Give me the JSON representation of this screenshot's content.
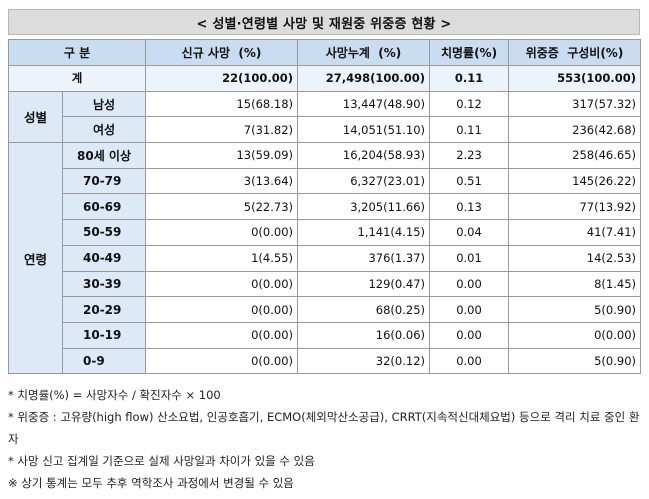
{
  "title": "< 성별·연령별 사망 및 재원중 위중증 현황 >",
  "table": {
    "headers": {
      "category": "구 분",
      "new_deaths": "신규 사망  (%)",
      "cumulative_deaths": "사망누계  (%)",
      "fatality_rate": "치명률(%)",
      "severe": "위중증  구성비(%)"
    },
    "total": {
      "label": "계",
      "new_deaths": "22(100.00)",
      "cumulative_deaths": "27,498(100.00)",
      "fatality_rate": "0.11",
      "severe": "553(100.00)"
    },
    "sex_group": "성별",
    "sex_rows": [
      {
        "label": "남성",
        "new_deaths": "15(68.18)",
        "cumulative_deaths": "13,447(48.90)",
        "fatality_rate": "0.12",
        "severe": "317(57.32)"
      },
      {
        "label": "여성",
        "new_deaths": "7(31.82)",
        "cumulative_deaths": "14,051(51.10)",
        "fatality_rate": "0.11",
        "severe": "236(42.68)"
      }
    ],
    "age_group": "연령",
    "age_rows": [
      {
        "label": "80세 이상",
        "new_deaths": "13(59.09)",
        "cumulative_deaths": "16,204(58.93)",
        "fatality_rate": "2.23",
        "severe": "258(46.65)"
      },
      {
        "label": "70-79",
        "new_deaths": "3(13.64)",
        "cumulative_deaths": "6,327(23.01)",
        "fatality_rate": "0.51",
        "severe": "145(26.22)"
      },
      {
        "label": "60-69",
        "new_deaths": "5(22.73)",
        "cumulative_deaths": "3,205(11.66)",
        "fatality_rate": "0.13",
        "severe": "77(13.92)"
      },
      {
        "label": "50-59",
        "new_deaths": "0(0.00)",
        "cumulative_deaths": "1,141(4.15)",
        "fatality_rate": "0.04",
        "severe": "41(7.41)"
      },
      {
        "label": "40-49",
        "new_deaths": "1(4.55)",
        "cumulative_deaths": "376(1.37)",
        "fatality_rate": "0.01",
        "severe": "14(2.53)"
      },
      {
        "label": "30-39",
        "new_deaths": "0(0.00)",
        "cumulative_deaths": "129(0.47)",
        "fatality_rate": "0.00",
        "severe": "8(1.45)"
      },
      {
        "label": "20-29",
        "new_deaths": "0(0.00)",
        "cumulative_deaths": "68(0.25)",
        "fatality_rate": "0.00",
        "severe": "5(0.90)"
      },
      {
        "label": "10-19",
        "new_deaths": "0(0.00)",
        "cumulative_deaths": "16(0.06)",
        "fatality_rate": "0.00",
        "severe": "0(0.00)"
      },
      {
        "label": "0-9",
        "new_deaths": "0(0.00)",
        "cumulative_deaths": "32(0.12)",
        "fatality_rate": "0.00",
        "severe": "5(0.90)"
      }
    ]
  },
  "notes": [
    "* 치명률(%) = 사망자수 / 확진자수 × 100",
    "* 위중증 : 고유량(high flow) 산소요법, 인공호흡기, ECMO(체외막산소공급), CRRT(지속적신대체요법) 등으로 격리 치료 중인 환자",
    "* 사망 신고 집계일 기준으로 실제 사망일과 차이가 있을 수 있음",
    "※ 상기 통계는 모두 추후 역학조사 과정에서 변경될 수 있음"
  ]
}
